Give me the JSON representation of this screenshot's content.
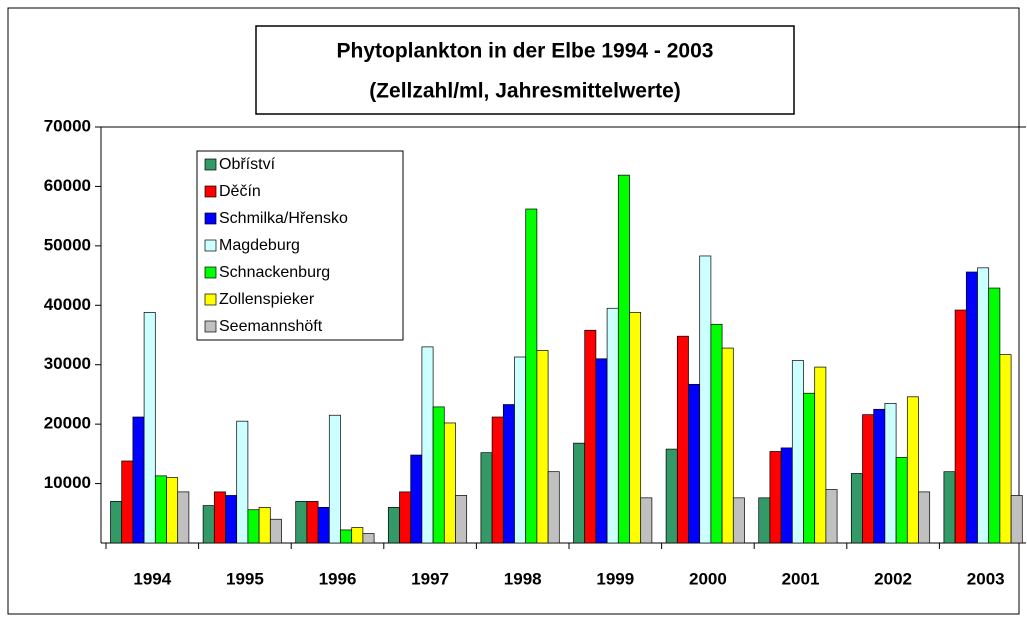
{
  "chart_data": {
    "type": "bar",
    "title": [
      "Phytoplankton in der Elbe 1994 - 2003",
      "(Zellzahl/ml, Jahresmittelwerte)"
    ],
    "categories": [
      "1994",
      "1995",
      "1996",
      "1997",
      "1998",
      "1999",
      "2000",
      "2001",
      "2002",
      "2003"
    ],
    "series": [
      {
        "name": "Obříství",
        "color": "#339966",
        "values": [
          7000,
          6300,
          7000,
          6000,
          15200,
          16800,
          15800,
          7600,
          11700,
          12000
        ]
      },
      {
        "name": "Děčín",
        "color": "#ff0000",
        "values": [
          13800,
          8600,
          7000,
          8600,
          21200,
          35800,
          34800,
          15400,
          21600,
          39200
        ]
      },
      {
        "name": "Schmilka/Hřensko",
        "color": "#0000ff",
        "values": [
          21200,
          8000,
          6000,
          14800,
          23300,
          31000,
          26700,
          16000,
          22500,
          45600
        ]
      },
      {
        "name": "Magdeburg",
        "color": "#ccffff",
        "values": [
          38800,
          20500,
          21500,
          33000,
          31300,
          39500,
          48300,
          30700,
          23500,
          46300
        ]
      },
      {
        "name": "Schnackenburg",
        "color": "#00ff00",
        "values": [
          11300,
          5600,
          2200,
          22900,
          56200,
          61900,
          36800,
          25200,
          14400,
          42900
        ]
      },
      {
        "name": "Zollenspieker",
        "color": "#ffff00",
        "values": [
          11000,
          6000,
          2600,
          20200,
          32400,
          38800,
          32800,
          29600,
          24600,
          31700
        ]
      },
      {
        "name": "Seemannshöft",
        "color": "#c0c0c0",
        "values": [
          8600,
          4000,
          1600,
          8000,
          12000,
          7600,
          7600,
          9000,
          8600,
          8000
        ]
      }
    ],
    "ylim": [
      0,
      70000
    ],
    "yticks": [
      10000,
      20000,
      30000,
      40000,
      50000,
      60000,
      70000
    ],
    "grid": false,
    "legend": "top-left"
  }
}
